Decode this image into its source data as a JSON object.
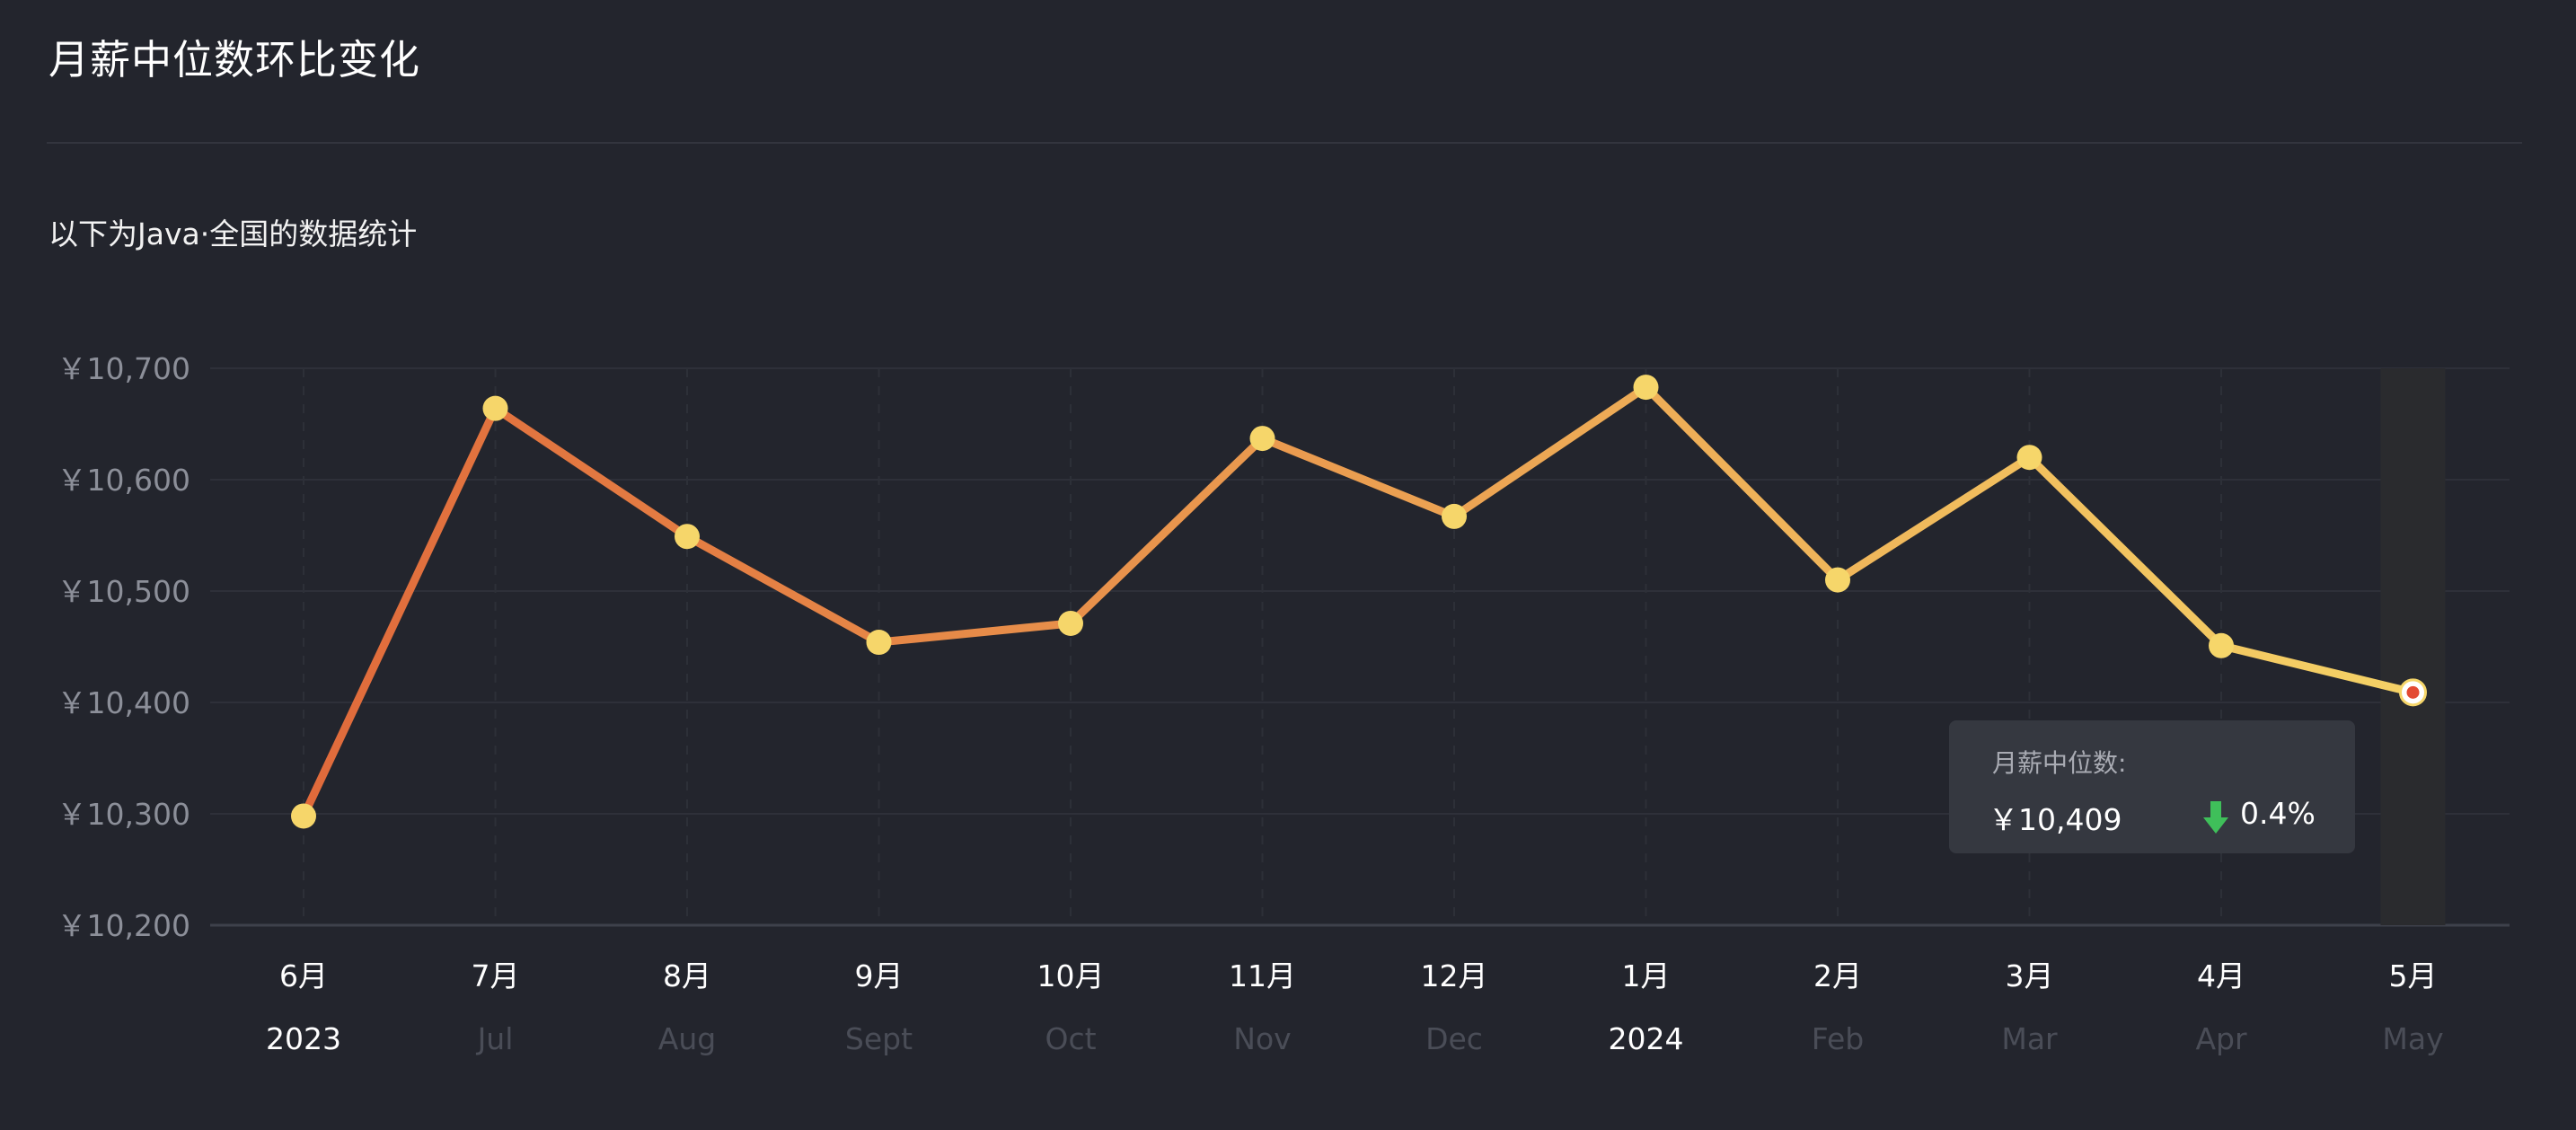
{
  "page": {
    "title": "月薪中位数环比变化",
    "subtitle": "以下为Java·全国的数据统计"
  },
  "colors": {
    "background": "#23252d",
    "line_start": "#e06a3b",
    "line_end": "#f5d266",
    "point": "#f6d66a",
    "highlight_point_center": "#e34a33",
    "tick_label": "#8c8f99",
    "year_label": "#ffffff",
    "month_en_label": "#4a4d57",
    "down_arrow": "#3fbf5a"
  },
  "chart_data": {
    "type": "line",
    "ylim": [
      10200,
      10700
    ],
    "y_ticks": [
      10700,
      10600,
      10500,
      10400,
      10300,
      10200
    ],
    "y_tick_labels": [
      "￥10,700",
      "￥10,600",
      "￥10,500",
      "￥10,400",
      "￥10,300",
      "￥10,200"
    ],
    "categories": [
      "6月",
      "7月",
      "8月",
      "9月",
      "10月",
      "11月",
      "12月",
      "1月",
      "2月",
      "3月",
      "4月",
      "5月"
    ],
    "sub_labels": [
      "2023",
      "Jul",
      "Aug",
      "Sept",
      "Oct",
      "Nov",
      "Dec",
      "2024",
      "Feb",
      "Mar",
      "Apr",
      "May"
    ],
    "year_sub_labels": [
      "2023",
      "2024"
    ],
    "values": [
      10298,
      10664,
      10549,
      10454,
      10471,
      10637,
      10567,
      10683,
      10510,
      10620,
      10451,
      10409
    ],
    "highlight_index": 11,
    "grid": true
  },
  "tooltip": {
    "title": "月薪中位数:",
    "value": "￥10,409",
    "change": "0.4%",
    "direction": "down"
  }
}
